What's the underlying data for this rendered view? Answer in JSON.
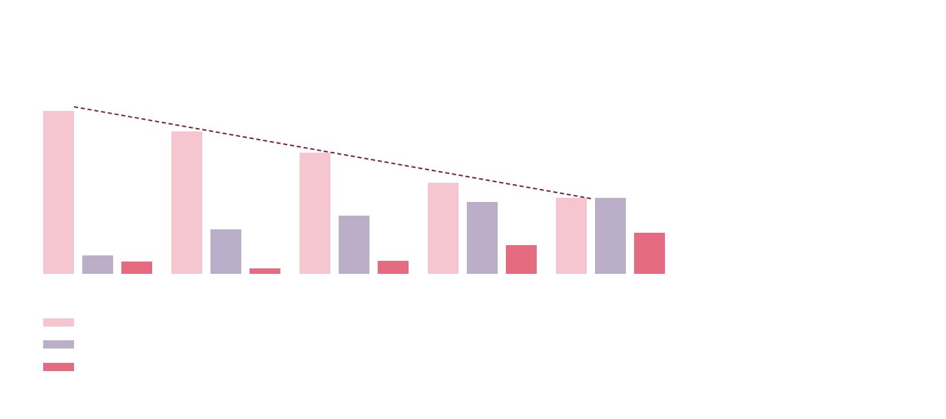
{
  "chart_data": {
    "type": "bar",
    "categories": [
      null,
      null,
      null,
      null,
      null
    ],
    "series": [
      {
        "color": "#f5c6cf",
        "values": [
          238,
          208,
          177,
          133,
          111
        ]
      },
      {
        "color": "#baaec8",
        "values": [
          27,
          65,
          85,
          105,
          111
        ]
      },
      {
        "color": "#e56c80",
        "values": [
          18,
          8,
          19,
          42,
          60
        ]
      }
    ],
    "trend_line": {
      "color": "#7a1f3d",
      "values": [
        244,
        110
      ]
    },
    "ylim": [
      0,
      250
    ],
    "grid": false,
    "legend": "bottom-left"
  }
}
